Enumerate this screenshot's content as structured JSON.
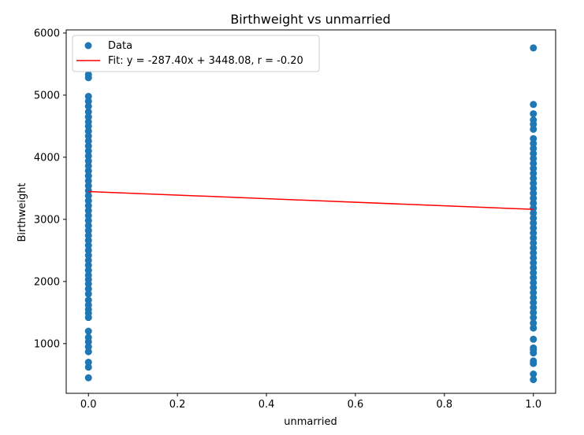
{
  "chart_data": {
    "type": "scatter",
    "title": "Birthweight vs unmarried",
    "xlabel": "unmarried",
    "ylabel": "Birthweight",
    "xlim": [
      -0.05,
      1.05
    ],
    "ylim": [
      200,
      6050
    ],
    "xticks": [
      0.0,
      0.2,
      0.4,
      0.6,
      0.8,
      1.0
    ],
    "xtick_labels": [
      "0.0",
      "0.2",
      "0.4",
      "0.6",
      "0.8",
      "1.0"
    ],
    "yticks": [
      1000,
      2000,
      3000,
      4000,
      5000,
      6000
    ],
    "ytick_labels": [
      "1000",
      "2000",
      "3000",
      "4000",
      "5000",
      "6000"
    ],
    "grid": false,
    "legend_position": "top-left",
    "series": [
      {
        "name": "Data",
        "kind": "scatter",
        "color": "#1f77b4",
        "points": [
          {
            "x": 0,
            "y": 450
          },
          {
            "x": 0,
            "y": 620
          },
          {
            "x": 0,
            "y": 700
          },
          {
            "x": 0,
            "y": 870
          },
          {
            "x": 0,
            "y": 950
          },
          {
            "x": 0,
            "y": 1030
          },
          {
            "x": 0,
            "y": 1100
          },
          {
            "x": 0,
            "y": 1200
          },
          {
            "x": 0,
            "y": 1420
          },
          {
            "x": 0,
            "y": 1490
          },
          {
            "x": 0,
            "y": 1550
          },
          {
            "x": 0,
            "y": 1620
          },
          {
            "x": 0,
            "y": 1700
          },
          {
            "x": 0,
            "y": 1800
          },
          {
            "x": 0,
            "y": 1880
          },
          {
            "x": 0,
            "y": 1960
          },
          {
            "x": 0,
            "y": 2030
          },
          {
            "x": 0,
            "y": 2100
          },
          {
            "x": 0,
            "y": 2180
          },
          {
            "x": 0,
            "y": 2260
          },
          {
            "x": 0,
            "y": 2340
          },
          {
            "x": 0,
            "y": 2420
          },
          {
            "x": 0,
            "y": 2500
          },
          {
            "x": 0,
            "y": 2580
          },
          {
            "x": 0,
            "y": 2660
          },
          {
            "x": 0,
            "y": 2740
          },
          {
            "x": 0,
            "y": 2820
          },
          {
            "x": 0,
            "y": 2900
          },
          {
            "x": 0,
            "y": 2980
          },
          {
            "x": 0,
            "y": 3060
          },
          {
            "x": 0,
            "y": 3140
          },
          {
            "x": 0,
            "y": 3220
          },
          {
            "x": 0,
            "y": 3300
          },
          {
            "x": 0,
            "y": 3380
          },
          {
            "x": 0,
            "y": 3460
          },
          {
            "x": 0,
            "y": 3540
          },
          {
            "x": 0,
            "y": 3620
          },
          {
            "x": 0,
            "y": 3700
          },
          {
            "x": 0,
            "y": 3780
          },
          {
            "x": 0,
            "y": 3860
          },
          {
            "x": 0,
            "y": 3940
          },
          {
            "x": 0,
            "y": 4020
          },
          {
            "x": 0,
            "y": 4100
          },
          {
            "x": 0,
            "y": 4180
          },
          {
            "x": 0,
            "y": 4260
          },
          {
            "x": 0,
            "y": 4340
          },
          {
            "x": 0,
            "y": 4420
          },
          {
            "x": 0,
            "y": 4500
          },
          {
            "x": 0,
            "y": 4570
          },
          {
            "x": 0,
            "y": 4650
          },
          {
            "x": 0,
            "y": 4730
          },
          {
            "x": 0,
            "y": 4820
          },
          {
            "x": 0,
            "y": 4900
          },
          {
            "x": 0,
            "y": 4980
          },
          {
            "x": 0,
            "y": 5280
          },
          {
            "x": 0,
            "y": 5330
          },
          {
            "x": 1,
            "y": 420
          },
          {
            "x": 1,
            "y": 510
          },
          {
            "x": 1,
            "y": 680
          },
          {
            "x": 1,
            "y": 720
          },
          {
            "x": 1,
            "y": 850
          },
          {
            "x": 1,
            "y": 900
          },
          {
            "x": 1,
            "y": 930
          },
          {
            "x": 1,
            "y": 1070
          },
          {
            "x": 1,
            "y": 1250
          },
          {
            "x": 1,
            "y": 1330
          },
          {
            "x": 1,
            "y": 1420
          },
          {
            "x": 1,
            "y": 1500
          },
          {
            "x": 1,
            "y": 1580
          },
          {
            "x": 1,
            "y": 1660
          },
          {
            "x": 1,
            "y": 1740
          },
          {
            "x": 1,
            "y": 1820
          },
          {
            "x": 1,
            "y": 1900
          },
          {
            "x": 1,
            "y": 1980
          },
          {
            "x": 1,
            "y": 2060
          },
          {
            "x": 1,
            "y": 2140
          },
          {
            "x": 1,
            "y": 2220
          },
          {
            "x": 1,
            "y": 2300
          },
          {
            "x": 1,
            "y": 2380
          },
          {
            "x": 1,
            "y": 2460
          },
          {
            "x": 1,
            "y": 2540
          },
          {
            "x": 1,
            "y": 2620
          },
          {
            "x": 1,
            "y": 2700
          },
          {
            "x": 1,
            "y": 2780
          },
          {
            "x": 1,
            "y": 2860
          },
          {
            "x": 1,
            "y": 2940
          },
          {
            "x": 1,
            "y": 3020
          },
          {
            "x": 1,
            "y": 3100
          },
          {
            "x": 1,
            "y": 3180
          },
          {
            "x": 1,
            "y": 3260
          },
          {
            "x": 1,
            "y": 3340
          },
          {
            "x": 1,
            "y": 3420
          },
          {
            "x": 1,
            "y": 3500
          },
          {
            "x": 1,
            "y": 3580
          },
          {
            "x": 1,
            "y": 3660
          },
          {
            "x": 1,
            "y": 3740
          },
          {
            "x": 1,
            "y": 3820
          },
          {
            "x": 1,
            "y": 3900
          },
          {
            "x": 1,
            "y": 3980
          },
          {
            "x": 1,
            "y": 4060
          },
          {
            "x": 1,
            "y": 4140
          },
          {
            "x": 1,
            "y": 4220
          },
          {
            "x": 1,
            "y": 4300
          },
          {
            "x": 1,
            "y": 4450
          },
          {
            "x": 1,
            "y": 4530
          },
          {
            "x": 1,
            "y": 4600
          },
          {
            "x": 1,
            "y": 4700
          },
          {
            "x": 1,
            "y": 4850
          },
          {
            "x": 1,
            "y": 5760
          }
        ]
      },
      {
        "name": "Fit: y = -287.40x + 3448.08, r = -0.20",
        "kind": "line",
        "color": "#ff0000",
        "points": [
          {
            "x": 0,
            "y": 3448.08
          },
          {
            "x": 1,
            "y": 3160.68
          }
        ]
      }
    ]
  }
}
